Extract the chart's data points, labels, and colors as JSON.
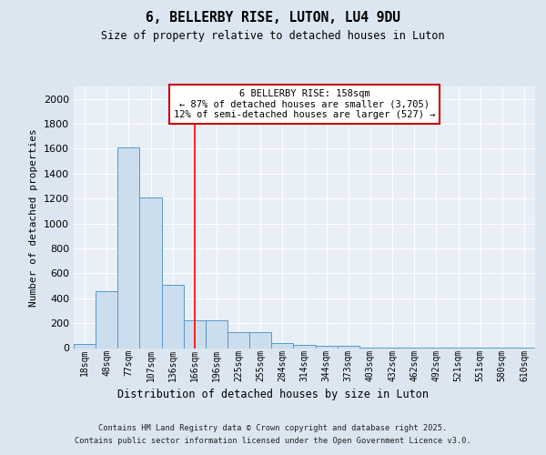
{
  "title": "6, BELLERBY RISE, LUTON, LU4 9DU",
  "subtitle": "Size of property relative to detached houses in Luton",
  "xlabel": "Distribution of detached houses by size in Luton",
  "ylabel": "Number of detached properties",
  "bin_labels": [
    "18sqm",
    "48sqm",
    "77sqm",
    "107sqm",
    "136sqm",
    "166sqm",
    "196sqm",
    "225sqm",
    "255sqm",
    "284sqm",
    "314sqm",
    "344sqm",
    "373sqm",
    "403sqm",
    "432sqm",
    "462sqm",
    "492sqm",
    "521sqm",
    "551sqm",
    "580sqm",
    "610sqm"
  ],
  "bar_heights": [
    30,
    460,
    1610,
    1210,
    510,
    220,
    220,
    130,
    130,
    40,
    25,
    20,
    15,
    5,
    3,
    2,
    2,
    1,
    1,
    1,
    1
  ],
  "bar_color": "#ccdded",
  "bar_edge_color": "#5599cc",
  "red_line_x": 5.0,
  "annotation_text": "6 BELLERBY RISE: 158sqm\n← 87% of detached houses are smaller (3,705)\n12% of semi-detached houses are larger (527) →",
  "annotation_box_color": "#ffffff",
  "annotation_box_edge_color": "#cc0000",
  "ylim": [
    0,
    2100
  ],
  "yticks": [
    0,
    200,
    400,
    600,
    800,
    1000,
    1200,
    1400,
    1600,
    1800,
    2000
  ],
  "bg_color": "#dce6f0",
  "plot_bg_color": "#e8eff7",
  "grid_color": "#ffffff",
  "footer_line1": "Contains HM Land Registry data © Crown copyright and database right 2025.",
  "footer_line2": "Contains public sector information licensed under the Open Government Licence v3.0."
}
